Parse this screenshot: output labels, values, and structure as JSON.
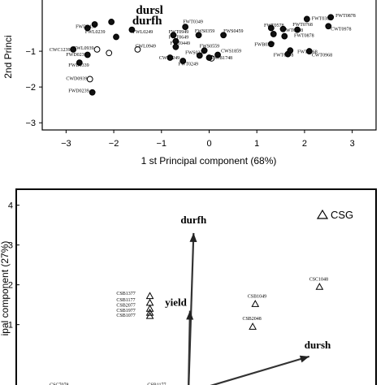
{
  "chart_data": [
    {
      "type": "scatter",
      "xlabel": "1 st  Principal component (68%)",
      "ylabel": "2nd Princi",
      "xlim": [
        -3.5,
        3.5
      ],
      "ylim": [
        -3.2,
        0.5
      ],
      "xticks": [
        -3,
        -2,
        -1,
        0,
        1,
        2,
        3
      ],
      "yticks": [
        -3,
        -2,
        -1
      ],
      "grid": false,
      "points": [
        {
          "x": -2.85,
          "y": -0.95,
          "style": "filled",
          "label": "CWC1239"
        },
        {
          "x": -2.72,
          "y": -1.32,
          "style": "filled",
          "label": "FWD0339"
        },
        {
          "x": -2.5,
          "y": -1.78,
          "style": "open",
          "label": "CWD0939"
        },
        {
          "x": -2.45,
          "y": -2.15,
          "style": "filled",
          "label": "FWD0239"
        },
        {
          "x": -2.55,
          "y": -1.1,
          "style": "filled",
          "label": "FWD0239"
        },
        {
          "x": -2.35,
          "y": -0.95,
          "style": "open",
          "label": "CWL0939"
        },
        {
          "x": -2.1,
          "y": -1.05,
          "style": "open",
          "label": "CWL0939"
        },
        {
          "x": -1.95,
          "y": -0.6,
          "style": "filled",
          "label": "FWD0239"
        },
        {
          "x": -1.62,
          "y": -0.4,
          "style": "filled",
          "label": "FWL0249"
        },
        {
          "x": -1.5,
          "y": -0.95,
          "style": "open",
          "label": "CWL0949"
        },
        {
          "x": -2.4,
          "y": -0.25,
          "style": "filled",
          "label": "FWD0439"
        },
        {
          "x": -2.55,
          "y": -0.35,
          "style": "filled",
          "label": "FWD0439"
        },
        {
          "x": -2.05,
          "y": -0.18,
          "style": "filled",
          "label": ""
        },
        {
          "x": -0.5,
          "y": -0.32,
          "style": "filled",
          "label": "FWT0349"
        },
        {
          "x": -0.75,
          "y": -0.55,
          "style": "filled",
          "label": "FWT0949"
        },
        {
          "x": -0.7,
          "y": -0.72,
          "style": "filled",
          "label": "FWT0649"
        },
        {
          "x": -0.7,
          "y": -0.88,
          "style": "filled",
          "label": "FWT0449"
        },
        {
          "x": -0.82,
          "y": -1.18,
          "style": "filled",
          "label": "CWT1249"
        },
        {
          "x": -0.55,
          "y": -1.27,
          "style": "filled",
          "label": "FWT0249"
        },
        {
          "x": -0.2,
          "y": -1.12,
          "style": "filled",
          "label": "FWS0259"
        },
        {
          "x": -0.22,
          "y": -0.55,
          "style": "filled",
          "label": "FWS0359"
        },
        {
          "x": 0.3,
          "y": -0.55,
          "style": "filled",
          "label": "FWS0459"
        },
        {
          "x": 0.18,
          "y": -1.1,
          "style": "filled",
          "label": "CWS1859"
        },
        {
          "x": -0.1,
          "y": -0.98,
          "style": "filled",
          "label": "FWS0559"
        },
        {
          "x": 0.05,
          "y": -1.2,
          "style": "open",
          "label": "CWB1748"
        },
        {
          "x": 0.0,
          "y": -1.18,
          "style": "filled",
          "label": "CWB1748"
        },
        {
          "x": 1.3,
          "y": -0.35,
          "style": "filled",
          "label": "FWT0578"
        },
        {
          "x": 1.55,
          "y": -0.38,
          "style": "filled",
          "label": "FWT0768"
        },
        {
          "x": 1.35,
          "y": -0.52,
          "style": "filled",
          "label": "FWT0468"
        },
        {
          "x": 1.58,
          "y": -0.58,
          "style": "filled",
          "label": "FWT0878"
        },
        {
          "x": 1.85,
          "y": -0.4,
          "style": "filled",
          "label": "FWT0868"
        },
        {
          "x": 2.5,
          "y": -0.3,
          "style": "filled",
          "label": "CWT0978"
        },
        {
          "x": 2.55,
          "y": -0.05,
          "style": "filled",
          "label": "FWT0878"
        },
        {
          "x": 2.05,
          "y": -0.1,
          "style": "filled",
          "label": "FWT0388"
        },
        {
          "x": 1.3,
          "y": -0.8,
          "style": "filled",
          "label": "FWB0377"
        },
        {
          "x": 1.65,
          "y": -1.08,
          "style": "filled",
          "label": "FWT0178"
        },
        {
          "x": 1.7,
          "y": -0.98,
          "style": "filled",
          "label": "FWT0268"
        },
        {
          "x": 2.1,
          "y": -1.0,
          "style": "filled",
          "label": "CWT0968"
        }
      ],
      "visible_labels": [
        {
          "text": "FWD0439",
          "x": -2.8,
          "y": -0.35
        },
        {
          "text": "FWL0239",
          "x": -2.6,
          "y": -0.5
        },
        {
          "text": "FWL0249",
          "x": -1.6,
          "y": -0.5
        },
        {
          "text": "CWC1239",
          "x": -3.35,
          "y": -1.0
        },
        {
          "text": "CWL0939",
          "x": -2.85,
          "y": -0.95
        },
        {
          "text": "FWD0239",
          "x": -3.0,
          "y": -1.13
        },
        {
          "text": "CWL0949",
          "x": -1.55,
          "y": -0.9
        },
        {
          "text": "FWD0339",
          "x": -2.95,
          "y": -1.43
        },
        {
          "text": "CWD0939",
          "x": -3.0,
          "y": -1.8
        },
        {
          "text": "FWD0239",
          "x": -2.95,
          "y": -2.15
        },
        {
          "text": "FWT0349",
          "x": -0.55,
          "y": -0.22
        },
        {
          "text": "FWT0949",
          "x": -0.85,
          "y": -0.5
        },
        {
          "text": "FWT0649",
          "x": -0.85,
          "y": -0.65
        },
        {
          "text": "FWT0449",
          "x": -0.82,
          "y": -0.82
        },
        {
          "text": "FWS0359",
          "x": -0.3,
          "y": -0.48
        },
        {
          "text": "FWS0459",
          "x": 0.3,
          "y": -0.48
        },
        {
          "text": "FWS0559",
          "x": -0.2,
          "y": -0.9
        },
        {
          "text": "FWS0259",
          "x": -0.5,
          "y": -1.08
        },
        {
          "text": "CWS1859",
          "x": 0.25,
          "y": -1.03
        },
        {
          "text": "CWT1249",
          "x": -1.05,
          "y": -1.23
        },
        {
          "text": "CWB1748",
          "x": 0.05,
          "y": -1.23
        },
        {
          "text": "FWT0249",
          "x": -0.65,
          "y": -1.4
        },
        {
          "text": "FWT0578",
          "x": 1.15,
          "y": -0.32
        },
        {
          "text": "FWT0768",
          "x": 1.75,
          "y": -0.3
        },
        {
          "text": "FWT0468",
          "x": 1.55,
          "y": -0.45
        },
        {
          "text": "FWT0878",
          "x": 1.78,
          "y": -0.6
        },
        {
          "text": "CWT0978",
          "x": 2.55,
          "y": -0.42
        },
        {
          "text": "FWT0878",
          "x": 2.65,
          "y": -0.05
        },
        {
          "text": "FWT0388",
          "x": 2.15,
          "y": -0.12
        },
        {
          "text": "FWB0377",
          "x": 0.95,
          "y": -0.85
        },
        {
          "text": "FWT0268",
          "x": 1.85,
          "y": -1.05
        },
        {
          "text": "FWT0178",
          "x": 1.35,
          "y": -1.15
        },
        {
          "text": "CWT0968",
          "x": 2.15,
          "y": -1.15
        }
      ],
      "vectors": [
        {
          "label": "durfh",
          "x": -1.3,
          "y": -0.25
        },
        {
          "label": "dursl",
          "x": -1.25,
          "y": 0.05
        }
      ]
    },
    {
      "type": "scatter",
      "xlabel": "",
      "ylabel": "ipal component (27%)",
      "xlim": [
        -3.5,
        3.5
      ],
      "ylim": [
        -0.7,
        4.4
      ],
      "yticks": [
        1,
        2,
        3,
        4
      ],
      "grid": false,
      "points": [
        {
          "x": -0.9,
          "y": 1.72,
          "style": "open-triangle",
          "label": "CSB1377"
        },
        {
          "x": -0.9,
          "y": 1.55,
          "style": "open-triangle",
          "label": "CSB1177"
        },
        {
          "x": -0.9,
          "y": 1.4,
          "style": "open-triangle",
          "label": "CSB2077"
        },
        {
          "x": -0.9,
          "y": 1.3,
          "style": "open-triangle",
          "label": "CSB1977"
        },
        {
          "x": -0.9,
          "y": 1.22,
          "style": "open-triangle",
          "label": "CSB1077"
        },
        {
          "x": 1.15,
          "y": 1.52,
          "style": "open-triangle",
          "label": "CSB1049"
        },
        {
          "x": 1.1,
          "y": 0.95,
          "style": "open-triangle",
          "label": "CSB2048"
        },
        {
          "x": 2.4,
          "y": 1.95,
          "style": "open-triangle",
          "label": "CSC1048"
        }
      ],
      "visible_labels": [
        {
          "text": "CSC1048",
          "x": 2.2,
          "y": 2.1
        },
        {
          "text": "CSB1049",
          "x": 1.0,
          "y": 1.68
        },
        {
          "text": "CSB2048",
          "x": 0.9,
          "y": 1.12
        },
        {
          "text": "CSB1377",
          "x": -1.55,
          "y": 1.75
        },
        {
          "text": "CSB1177",
          "x": -1.55,
          "y": 1.58
        },
        {
          "text": "CSB2077",
          "x": -1.55,
          "y": 1.45
        },
        {
          "text": "CSB1977",
          "x": -1.55,
          "y": 1.32
        },
        {
          "text": "CSB1077",
          "x": -1.55,
          "y": 1.2
        },
        {
          "text": "CSC7078",
          "x": -2.85,
          "y": -0.55
        },
        {
          "text": "CSB1177",
          "x": -0.95,
          "y": -0.55
        }
      ],
      "legend": {
        "symbol": "open-triangle",
        "text": "CSG",
        "position": "top-right"
      },
      "vectors": [
        {
          "label": "durfh",
          "x": -0.05,
          "y": 3.3
        },
        {
          "label": "yield",
          "x": -0.12,
          "y": 1.35
        },
        {
          "label": "dursh",
          "x": 2.2,
          "y": 0.2
        }
      ],
      "vector_origin": {
        "x": -0.15,
        "y": -0.7
      }
    }
  ]
}
